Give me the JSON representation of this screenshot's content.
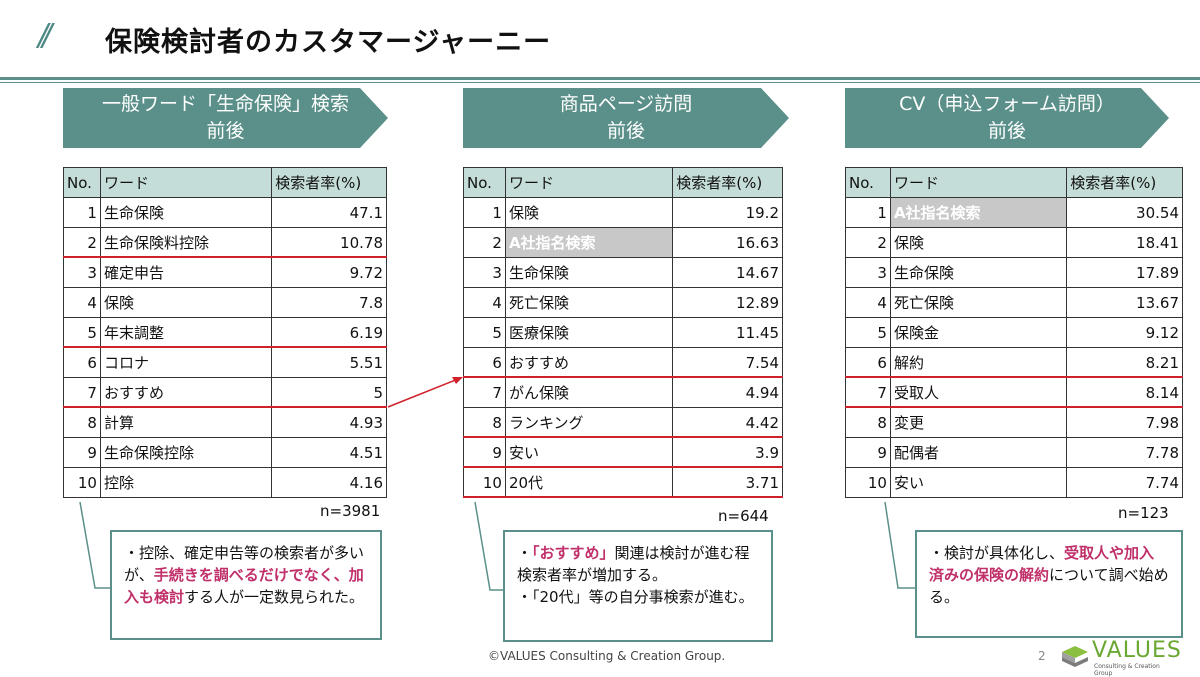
{
  "title": "保険検討者のカスタマージャーニー",
  "stages": [
    {
      "label_line1": "一般ワード「生命保険」検索",
      "label_line2": "前後",
      "n": "n=3981",
      "headers": [
        "No.",
        "ワード",
        "検索者率(%)"
      ],
      "rows": [
        [
          "1",
          "生命保険",
          "47.1"
        ],
        [
          "2",
          "生命保険料控除",
          "10.78"
        ],
        [
          "3",
          "確定申告",
          "9.72"
        ],
        [
          "4",
          "保険",
          "7.8"
        ],
        [
          "5",
          "年末調整",
          "6.19"
        ],
        [
          "6",
          "コロナ",
          "5.51"
        ],
        [
          "7",
          "おすすめ",
          "5"
        ],
        [
          "8",
          "計算",
          "4.93"
        ],
        [
          "9",
          "生命保険控除",
          "4.51"
        ],
        [
          "10",
          "控除",
          "4.16"
        ]
      ],
      "note": {
        "p1": "・控除、確定申告等の検索者が多いが、",
        "em1": "手続きを調べるだけでなく、加入も検討",
        "p2": "する人が一定数見られた。"
      }
    },
    {
      "label_line1": "商品ページ訪問",
      "label_line2": "前後",
      "n": "n=644",
      "headers": [
        "No.",
        "ワード",
        "検索者率(%)"
      ],
      "rows": [
        [
          "1",
          "保険",
          "19.2"
        ],
        [
          "2",
          "A社指名検索",
          "16.63"
        ],
        [
          "3",
          "生命保険",
          "14.67"
        ],
        [
          "4",
          "死亡保険",
          "12.89"
        ],
        [
          "5",
          "医療保険",
          "11.45"
        ],
        [
          "6",
          "おすすめ",
          "7.54"
        ],
        [
          "7",
          "がん保険",
          "4.94"
        ],
        [
          "8",
          "ランキング",
          "4.42"
        ],
        [
          "9",
          "安い",
          "3.9"
        ],
        [
          "10",
          "20代",
          "3.71"
        ]
      ],
      "note": {
        "p0": "・",
        "em1": "「おすすめ」",
        "p1": "関連は検討が進む程検索者率が増加する。",
        "p2": "・「20代」等の自分事検索が進む。"
      }
    },
    {
      "label_line1": "CV（申込フォーム訪問）",
      "label_line2": "前後",
      "n": "n=123",
      "headers": [
        "No.",
        "ワード",
        "検索者率(%)"
      ],
      "rows": [
        [
          "1",
          "A社指名検索",
          "30.54"
        ],
        [
          "2",
          "保険",
          "18.41"
        ],
        [
          "3",
          "生命保険",
          "17.89"
        ],
        [
          "4",
          "死亡保険",
          "13.67"
        ],
        [
          "5",
          "保険金",
          "9.12"
        ],
        [
          "6",
          "解約",
          "8.21"
        ],
        [
          "7",
          "受取人",
          "8.14"
        ],
        [
          "8",
          "変更",
          "7.98"
        ],
        [
          "9",
          "配偶者",
          "7.78"
        ],
        [
          "10",
          "安い",
          "7.74"
        ]
      ],
      "note": {
        "p1": "・検討が具体化し、",
        "em1": "受取人や加入済みの保険の解約",
        "p2": "について調べ始める。"
      }
    }
  ],
  "footer": "©VALUES Consulting & Creation Group.",
  "page_number": "2",
  "logo": {
    "text": "VALUES",
    "sub": "Consulting & Creation Group"
  },
  "colors": {
    "accent": "#5a9089",
    "highlight": "#c0306a",
    "underline": "#d0202a"
  }
}
